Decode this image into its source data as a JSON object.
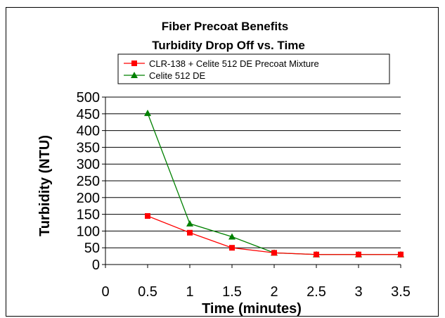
{
  "chart_data": {
    "type": "line",
    "title": "Fiber Precoat Benefits",
    "subtitle": "Turbidity Drop Off vs. Time",
    "xlabel": "Time (minutes)",
    "ylabel": "Turbidity (NTU)",
    "xlim": [
      0,
      3.5
    ],
    "ylim": [
      0,
      500
    ],
    "x_ticks": [
      "0",
      "0.5",
      "1",
      "1.5",
      "2",
      "2.5",
      "3",
      "3.5"
    ],
    "y_ticks": [
      "0",
      "50",
      "100",
      "150",
      "200",
      "250",
      "300",
      "350",
      "400",
      "450",
      "500"
    ],
    "grid": "horizontal",
    "legend_position": "top-right",
    "series": [
      {
        "name": "CLR-138 + Celite 512 DE Precoat Mixture",
        "color": "#ff0000",
        "marker": "square",
        "x": [
          0.5,
          1,
          1.5,
          2,
          2.5,
          3,
          3.5
        ],
        "y": [
          145,
          95,
          50,
          35,
          30,
          30,
          30
        ]
      },
      {
        "name": "Celite 512 DE",
        "color": "#008000",
        "marker": "triangle",
        "x": [
          0.5,
          1,
          1.5,
          2,
          2.5,
          3,
          3.5
        ],
        "y": [
          452,
          122,
          83,
          35,
          30,
          30,
          30
        ]
      }
    ]
  }
}
